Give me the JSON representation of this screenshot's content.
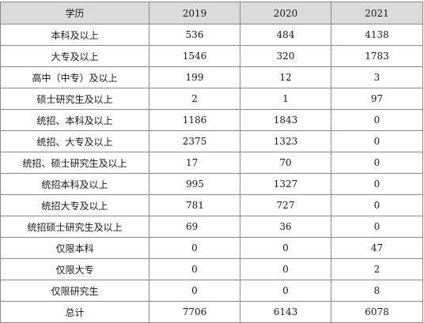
{
  "table": {
    "headers": [
      "学历",
      "2019",
      "2020",
      "2021"
    ],
    "rows": [
      {
        "label": "本科及以上",
        "v2019": "536",
        "v2020": "484",
        "v2021": "4138"
      },
      {
        "label": "大专及以上",
        "v2019": "1546",
        "v2020": "320",
        "v2021": "1783"
      },
      {
        "label": "高中（中专）及以上",
        "v2019": "199",
        "v2020": "12",
        "v2021": "3"
      },
      {
        "label": "硕士研究生及以上",
        "v2019": "2",
        "v2020": "1",
        "v2021": "97"
      },
      {
        "label": "统招、本科及以上",
        "v2019": "1186",
        "v2020": "1843",
        "v2021": "0"
      },
      {
        "label": "统招、大专及以上",
        "v2019": "2375",
        "v2020": "1323",
        "v2021": "0"
      },
      {
        "label": "统招、硕士研究生及以上",
        "v2019": "17",
        "v2020": "70",
        "v2021": "0"
      },
      {
        "label": "统招本科及以上",
        "v2019": "995",
        "v2020": "1327",
        "v2021": "0"
      },
      {
        "label": "统招大专及以上",
        "v2019": "781",
        "v2020": "727",
        "v2021": "0"
      },
      {
        "label": "统招硕士研究生及以上",
        "v2019": "69",
        "v2020": "36",
        "v2021": "0"
      },
      {
        "label": "仅限本科",
        "v2019": "0",
        "v2020": "0",
        "v2021": "47"
      },
      {
        "label": "仅限大专",
        "v2019": "0",
        "v2020": "0",
        "v2021": "2"
      },
      {
        "label": "仅限研究生",
        "v2019": "0",
        "v2020": "0",
        "v2021": "8"
      },
      {
        "label": "总计",
        "v2019": "7706",
        "v2020": "6143",
        "v2021": "6078"
      }
    ]
  }
}
